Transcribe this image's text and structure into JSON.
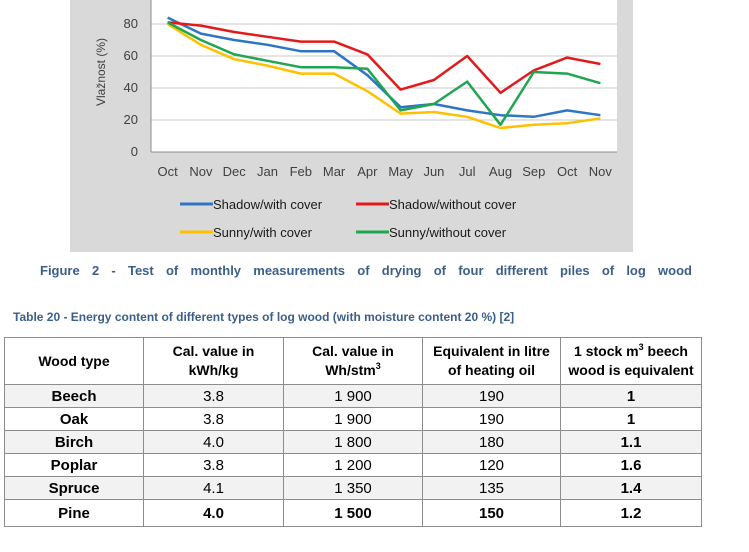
{
  "chart_data": {
    "type": "line",
    "ylabel": "Vlažnost (%)",
    "xlabel": "",
    "title": "",
    "ylim": [
      0,
      80
    ],
    "yticks": [
      0,
      20,
      40,
      60,
      80
    ],
    "categories": [
      "Oct",
      "Nov",
      "Dec",
      "Jan",
      "Feb",
      "Mar",
      "Apr",
      "May",
      "Jun",
      "Jul",
      "Aug",
      "Sep",
      "Oct",
      "Nov"
    ],
    "legend_position": "bottom",
    "series": [
      {
        "name": "Shadow/with cover",
        "color": "#2e75c6",
        "values": [
          84,
          74,
          70,
          67,
          63,
          63,
          48,
          28,
          30,
          26,
          23,
          22,
          26,
          23
        ]
      },
      {
        "name": "Shadow/without cover",
        "color": "#e31a1c",
        "values": [
          81,
          79,
          75,
          72,
          69,
          69,
          61,
          39,
          45,
          60,
          37,
          51,
          59,
          55
        ]
      },
      {
        "name": "Sunny/with cover",
        "color": "#ffc000",
        "values": [
          80,
          67,
          58,
          54,
          49,
          49,
          38,
          24,
          25,
          22,
          15,
          17,
          18,
          21
        ]
      },
      {
        "name": "Sunny/without cover",
        "color": "#1fa650",
        "values": [
          81,
          70,
          61,
          57,
          53,
          53,
          52,
          26,
          30,
          44,
          17,
          50,
          49,
          43
        ]
      }
    ]
  },
  "figure_caption": "Figure 2 - Test of monthly measurements of drying of four different piles of log wood",
  "table": {
    "caption": "Table 20 - Energy content of different types of log wood (with moisture content 20 %) [2]",
    "headers": {
      "wood_type": "Wood type",
      "cal_kg_1": "Cal. value in",
      "cal_kg_2": "kWh/kg",
      "cal_stm_1": "Cal. value in",
      "cal_stm_2": "Wh/stm",
      "cal_stm_sup": "3",
      "oil_1": "Equivalent in litre",
      "oil_2": "of heating oil",
      "stock_1a": "1 stock m",
      "stock_sup": "3",
      "stock_1b": " beech",
      "stock_2": "wood is equivalent"
    },
    "rows": [
      {
        "name": "Beech",
        "kwh": "3.8",
        "wh": "1 900",
        "oil": "190",
        "eq": "1"
      },
      {
        "name": "Oak",
        "kwh": "3.8",
        "wh": "1 900",
        "oil": "190",
        "eq": "1"
      },
      {
        "name": "Birch",
        "kwh": "4.0",
        "wh": "1 800",
        "oil": "180",
        "eq": "1.1"
      },
      {
        "name": "Poplar",
        "kwh": "3.8",
        "wh": "1 200",
        "oil": "120",
        "eq": "1.6"
      },
      {
        "name": "Spruce",
        "kwh": "4.1",
        "wh": "1 350",
        "oil": "135",
        "eq": "1.4"
      },
      {
        "name": "Pine",
        "kwh": "4.0",
        "wh": "1 500",
        "oil": "150",
        "eq": "1.2"
      }
    ]
  }
}
